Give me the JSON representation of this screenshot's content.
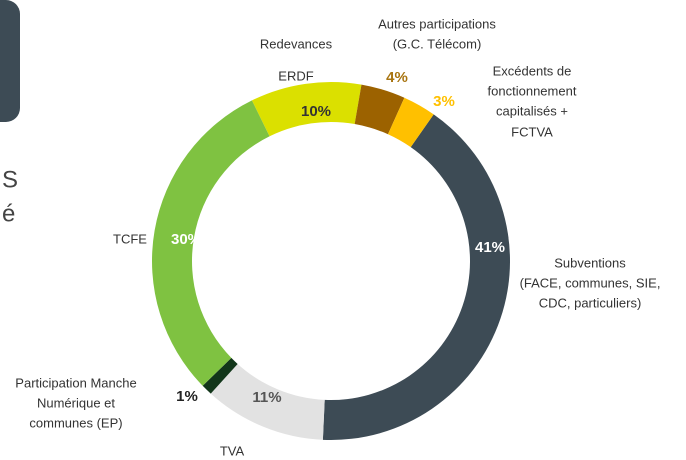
{
  "chart_data": {
    "type": "donut",
    "categories": [
      [
        "Subventions",
        "(FACE, communes, SIE,",
        "CDC, particuliers)"
      ],
      [
        "TVA"
      ],
      [
        "Participation Manche",
        "Numérique et",
        "communes (EP)"
      ],
      [
        "TCFE"
      ],
      [
        "Redevances",
        "ERDF"
      ],
      [
        "Autres participations",
        "(G.C. Télécom)"
      ],
      [
        "Excédents de",
        "fonctionnement",
        "capitalisés +",
        "FCTVA"
      ]
    ],
    "values": [
      41,
      11,
      1,
      30,
      10,
      4,
      3
    ],
    "value_labels": [
      "41%",
      "11%",
      "1%",
      "30%",
      "10%",
      "4%",
      "3%"
    ],
    "colors": [
      "#3d4b55",
      "#e2e2e2",
      "#12361a",
      "#7fc241",
      "#dbe000",
      "#9c6200",
      "#ffc000"
    ],
    "label_colors": [
      "#ffffff",
      "#555555",
      "#222222",
      "#ffffff",
      "#333333",
      "#a87410",
      "#ffc000"
    ],
    "fragments": [
      "S",
      "é"
    ]
  }
}
